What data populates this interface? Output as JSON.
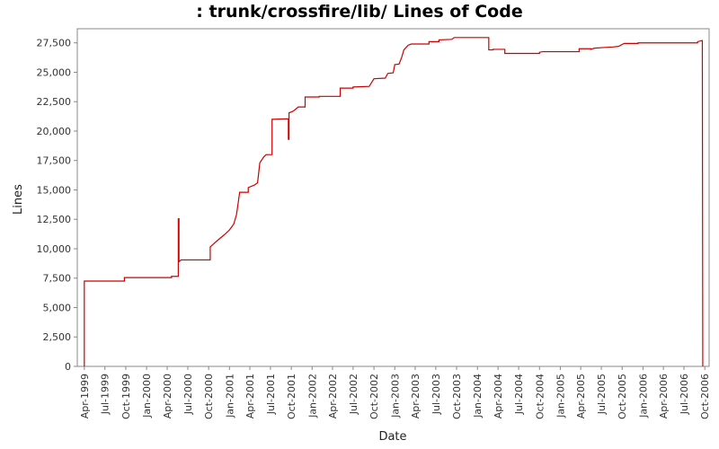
{
  "chart_data": {
    "type": "line",
    "title": ": trunk/crossfire/lib/ Lines of Code",
    "xlabel": "Date",
    "ylabel": "Lines",
    "ylim": [
      0,
      28700
    ],
    "xlim": [
      "1999-03-01",
      "2006-10-20"
    ],
    "grid": false,
    "legend": "none",
    "line_color": "#cc0000",
    "y_ticks": [
      {
        "value": 0,
        "label": "0"
      },
      {
        "value": 2500,
        "label": "2,500"
      },
      {
        "value": 5000,
        "label": "5,000"
      },
      {
        "value": 7500,
        "label": "7,500"
      },
      {
        "value": 10000,
        "label": "10,000"
      },
      {
        "value": 12500,
        "label": "12,500"
      },
      {
        "value": 15000,
        "label": "15,000"
      },
      {
        "value": 17500,
        "label": "17,500"
      },
      {
        "value": 20000,
        "label": "20,000"
      },
      {
        "value": 22500,
        "label": "22,500"
      },
      {
        "value": 25000,
        "label": "25,000"
      },
      {
        "value": 27500,
        "label": "27,500"
      }
    ],
    "x_ticks": [
      {
        "date": "1999-04-01",
        "label": "Apr-1999"
      },
      {
        "date": "1999-07-01",
        "label": "Jul-1999"
      },
      {
        "date": "1999-10-01",
        "label": "Oct-1999"
      },
      {
        "date": "2000-01-01",
        "label": "Jan-2000"
      },
      {
        "date": "2000-04-01",
        "label": "Apr-2000"
      },
      {
        "date": "2000-07-01",
        "label": "Jul-2000"
      },
      {
        "date": "2000-10-01",
        "label": "Oct-2000"
      },
      {
        "date": "2001-01-01",
        "label": "Jan-2001"
      },
      {
        "date": "2001-04-01",
        "label": "Apr-2001"
      },
      {
        "date": "2001-07-01",
        "label": "Jul-2001"
      },
      {
        "date": "2001-10-01",
        "label": "Oct-2001"
      },
      {
        "date": "2002-01-01",
        "label": "Jan-2002"
      },
      {
        "date": "2002-04-01",
        "label": "Apr-2002"
      },
      {
        "date": "2002-07-01",
        "label": "Jul-2002"
      },
      {
        "date": "2002-10-01",
        "label": "Oct-2002"
      },
      {
        "date": "2003-01-01",
        "label": "Jan-2003"
      },
      {
        "date": "2003-04-01",
        "label": "Apr-2003"
      },
      {
        "date": "2003-07-01",
        "label": "Jul-2003"
      },
      {
        "date": "2003-10-01",
        "label": "Oct-2003"
      },
      {
        "date": "2004-01-01",
        "label": "Jan-2004"
      },
      {
        "date": "2004-04-01",
        "label": "Apr-2004"
      },
      {
        "date": "2004-07-01",
        "label": "Jul-2004"
      },
      {
        "date": "2004-10-01",
        "label": "Oct-2004"
      },
      {
        "date": "2005-01-01",
        "label": "Jan-2005"
      },
      {
        "date": "2005-04-01",
        "label": "Apr-2005"
      },
      {
        "date": "2005-07-01",
        "label": "Jul-2005"
      },
      {
        "date": "2005-10-01",
        "label": "Oct-2005"
      },
      {
        "date": "2006-01-01",
        "label": "Jan-2006"
      },
      {
        "date": "2006-04-01",
        "label": "Apr-2006"
      },
      {
        "date": "2006-07-01",
        "label": "Jul-2006"
      },
      {
        "date": "2006-10-01",
        "label": "Oct-2006"
      }
    ],
    "series": [
      {
        "points": [
          {
            "date": "1999-04-01",
            "y": 0
          },
          {
            "date": "1999-04-01",
            "y": 7250
          },
          {
            "date": "1999-09-25",
            "y": 7250
          },
          {
            "date": "1999-09-25",
            "y": 7550
          },
          {
            "date": "2000-04-20",
            "y": 7550
          },
          {
            "date": "2000-04-20",
            "y": 7650
          },
          {
            "date": "2000-05-20",
            "y": 7650
          },
          {
            "date": "2000-05-20",
            "y": 12550
          },
          {
            "date": "2000-05-23",
            "y": 12550
          },
          {
            "date": "2000-05-23",
            "y": 8900
          },
          {
            "date": "2000-06-01",
            "y": 9050
          },
          {
            "date": "2000-10-08",
            "y": 9050
          },
          {
            "date": "2000-10-08",
            "y": 10150
          },
          {
            "date": "2000-10-25",
            "y": 10450
          },
          {
            "date": "2000-11-15",
            "y": 10800
          },
          {
            "date": "2000-12-10",
            "y": 11200
          },
          {
            "date": "2001-01-01",
            "y": 11600
          },
          {
            "date": "2001-01-20",
            "y": 12100
          },
          {
            "date": "2001-02-01",
            "y": 12900
          },
          {
            "date": "2001-02-10",
            "y": 14100
          },
          {
            "date": "2001-02-15",
            "y": 14800
          },
          {
            "date": "2001-03-25",
            "y": 14800
          },
          {
            "date": "2001-03-25",
            "y": 15200
          },
          {
            "date": "2001-04-20",
            "y": 15400
          },
          {
            "date": "2001-05-05",
            "y": 15600
          },
          {
            "date": "2001-05-15",
            "y": 17300
          },
          {
            "date": "2001-06-01",
            "y": 17800
          },
          {
            "date": "2001-06-12",
            "y": 18000
          },
          {
            "date": "2001-07-08",
            "y": 18000
          },
          {
            "date": "2001-07-08",
            "y": 21000
          },
          {
            "date": "2001-09-18",
            "y": 21050
          },
          {
            "date": "2001-09-18",
            "y": 19300
          },
          {
            "date": "2001-09-21",
            "y": 19300
          },
          {
            "date": "2001-09-21",
            "y": 21550
          },
          {
            "date": "2001-10-10",
            "y": 21700
          },
          {
            "date": "2001-11-01",
            "y": 22050
          },
          {
            "date": "2001-12-01",
            "y": 22050
          },
          {
            "date": "2001-12-01",
            "y": 22900
          },
          {
            "date": "2002-02-01",
            "y": 22900
          },
          {
            "date": "2002-02-01",
            "y": 22950
          },
          {
            "date": "2002-05-05",
            "y": 22950
          },
          {
            "date": "2002-05-05",
            "y": 23650
          },
          {
            "date": "2002-07-01",
            "y": 23650
          },
          {
            "date": "2002-07-01",
            "y": 23750
          },
          {
            "date": "2002-09-10",
            "y": 23800
          },
          {
            "date": "2002-10-01",
            "y": 24450
          },
          {
            "date": "2002-11-20",
            "y": 24500
          },
          {
            "date": "2002-12-01",
            "y": 24900
          },
          {
            "date": "2002-12-25",
            "y": 24950
          },
          {
            "date": "2003-01-01",
            "y": 25650
          },
          {
            "date": "2003-01-20",
            "y": 25700
          },
          {
            "date": "2003-02-01",
            "y": 26300
          },
          {
            "date": "2003-02-10",
            "y": 26900
          },
          {
            "date": "2003-03-01",
            "y": 27300
          },
          {
            "date": "2003-03-15",
            "y": 27400
          },
          {
            "date": "2003-06-01",
            "y": 27400
          },
          {
            "date": "2003-06-01",
            "y": 27600
          },
          {
            "date": "2003-07-15",
            "y": 27600
          },
          {
            "date": "2003-07-15",
            "y": 27750
          },
          {
            "date": "2003-09-10",
            "y": 27800
          },
          {
            "date": "2003-09-20",
            "y": 27950
          },
          {
            "date": "2004-02-20",
            "y": 27950
          },
          {
            "date": "2004-02-20",
            "y": 26900
          },
          {
            "date": "2004-03-10",
            "y": 26900
          },
          {
            "date": "2004-03-10",
            "y": 26950
          },
          {
            "date": "2004-05-01",
            "y": 26950
          },
          {
            "date": "2004-05-01",
            "y": 26600
          },
          {
            "date": "2004-10-01",
            "y": 26600
          },
          {
            "date": "2004-10-01",
            "y": 26700
          },
          {
            "date": "2004-10-15",
            "y": 26750
          },
          {
            "date": "2005-03-25",
            "y": 26750
          },
          {
            "date": "2005-03-25",
            "y": 27000
          },
          {
            "date": "2005-05-15",
            "y": 27000
          },
          {
            "date": "2005-05-15",
            "y": 26950
          },
          {
            "date": "2005-06-01",
            "y": 27050
          },
          {
            "date": "2005-07-10",
            "y": 27100
          },
          {
            "date": "2005-08-20",
            "y": 27150
          },
          {
            "date": "2005-09-15",
            "y": 27200
          },
          {
            "date": "2005-10-10",
            "y": 27450
          },
          {
            "date": "2005-12-10",
            "y": 27450
          },
          {
            "date": "2005-12-10",
            "y": 27500
          },
          {
            "date": "2006-08-30",
            "y": 27500
          },
          {
            "date": "2006-08-30",
            "y": 27600
          },
          {
            "date": "2006-09-20",
            "y": 27700
          },
          {
            "date": "2006-09-22",
            "y": 0
          }
        ]
      }
    ]
  }
}
